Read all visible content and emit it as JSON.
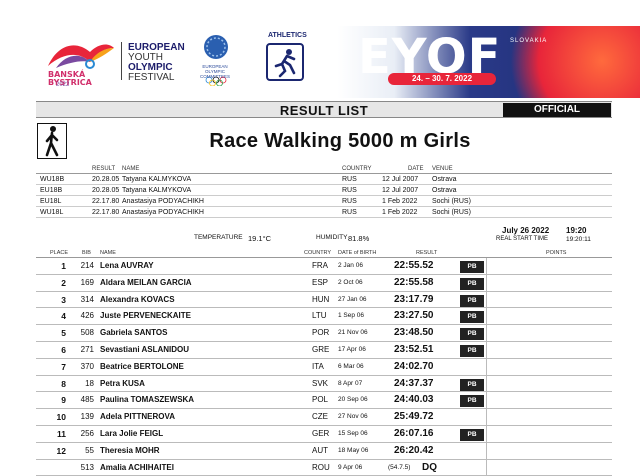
{
  "header": {
    "city_logo_text": "BANSKÁ BYSTRICA",
    "city_logo_year": "2022",
    "festival_lines": [
      "EUROPEAN",
      "YOUTH",
      "OLYMPIC",
      "FESTIVAL"
    ],
    "eoc_text": "EUROPEAN OLYMPIC COMMITTEES",
    "sport_label": "ATHLETICS",
    "event_brand": "EYOF",
    "country": "SLOVAKIA",
    "dates": "24. – 30. 7. 2022"
  },
  "result_list": {
    "title": "RESULT LIST",
    "status": "OFFICIAL"
  },
  "event": {
    "title_bold": "Race Walking 5000 m",
    "title_rest": "Girls"
  },
  "records": {
    "headers": {
      "result": "RESULT",
      "name": "NAME",
      "country": "COUNTRY",
      "date": "DATE",
      "venue": "VENUE"
    },
    "rows": [
      {
        "code": "WU18B",
        "result": "20.28.05",
        "name": "Tatyana KALMYKOVA",
        "country": "RUS",
        "date": "12 Jul 2007",
        "venue": "Ostrava"
      },
      {
        "code": "EU18B",
        "result": "20.28.05",
        "name": "Tatyana KALMYKOVA",
        "country": "RUS",
        "date": "12 Jul 2007",
        "venue": "Ostrava"
      },
      {
        "code": "EU18L",
        "result": "22.17.80",
        "name": "Anastasiya PODYACHIKH",
        "country": "RUS",
        "date": "1 Feb 2022",
        "venue": "Sochi (RUS)"
      },
      {
        "code": "WU18L",
        "result": "22.17.80",
        "name": "Anastasiya PODYACHIKH",
        "country": "RUS",
        "date": "1 Feb 2022",
        "venue": "Sochi (RUS)"
      }
    ]
  },
  "conditions": {
    "temperature_label": "TEMPERATURE",
    "temperature": "19.1°C",
    "humidity_label": "HUMIDITY",
    "humidity": "81.8%",
    "date": "July 26 2022",
    "time": "19:20",
    "start_label": "REAL START TIME",
    "start_time": "19:20:11"
  },
  "results": {
    "headers": {
      "place": "PLACE",
      "bib": "BIB",
      "name": "NAME",
      "country": "COUNTRY",
      "dob": "DATE of BIRTH",
      "result": "RESULT",
      "points": "POINTS"
    },
    "rows": [
      {
        "place": "1",
        "bib": "214",
        "name": "Lena AUVRAY",
        "country": "FRA",
        "dob": "2 Jan 06",
        "time": "22:55.52",
        "pb": "PB"
      },
      {
        "place": "2",
        "bib": "169",
        "name": "Aldara MEILAN GARCIA",
        "country": "ESP",
        "dob": "2 Oct 06",
        "time": "22:55.58",
        "pb": "PB"
      },
      {
        "place": "3",
        "bib": "314",
        "name": "Alexandra KOVACS",
        "country": "HUN",
        "dob": "27 Jan 06",
        "time": "23:17.79",
        "pb": "PB"
      },
      {
        "place": "4",
        "bib": "426",
        "name": "Juste PERVENECKAITE",
        "country": "LTU",
        "dob": "1 Sep 06",
        "time": "23:27.50",
        "pb": "PB"
      },
      {
        "place": "5",
        "bib": "508",
        "name": "Gabriela SANTOS",
        "country": "POR",
        "dob": "21 Nov 06",
        "time": "23:48.50",
        "pb": "PB"
      },
      {
        "place": "6",
        "bib": "271",
        "name": "Sevastiani ASLANIDOU",
        "country": "GRE",
        "dob": "17 Apr 06",
        "time": "23:52.51",
        "pb": "PB"
      },
      {
        "place": "7",
        "bib": "370",
        "name": "Beatrice BERTOLONE",
        "country": "ITA",
        "dob": "6 Mar 06",
        "time": "24:02.70",
        "pb": ""
      },
      {
        "place": "8",
        "bib": "18",
        "name": "Petra KUSA",
        "country": "SVK",
        "dob": "8 Apr 07",
        "time": "24:37.37",
        "pb": "PB"
      },
      {
        "place": "9",
        "bib": "485",
        "name": "Paulina TOMASZEWSKA",
        "country": "POL",
        "dob": "20 Sep 06",
        "time": "24:40.03",
        "pb": "PB"
      },
      {
        "place": "10",
        "bib": "139",
        "name": "Adela PITTNEROVA",
        "country": "CZE",
        "dob": "27 Nov 06",
        "time": "25:49.72",
        "pb": ""
      },
      {
        "place": "11",
        "bib": "256",
        "name": "Lara Jolie FEIGL",
        "country": "GER",
        "dob": "15 Sep 06",
        "time": "26:07.16",
        "pb": "PB"
      },
      {
        "place": "12",
        "bib": "55",
        "name": "Theresia MOHR",
        "country": "AUT",
        "dob": "18 May 06",
        "time": "26:20.42",
        "pb": ""
      },
      {
        "place": "",
        "bib": "513",
        "name": "Amalia ACHIHAITEI",
        "country": "ROU",
        "dob": "9 Apr 06",
        "time": "DQ",
        "pb": "",
        "extra": "(54.7.5)"
      }
    ]
  }
}
